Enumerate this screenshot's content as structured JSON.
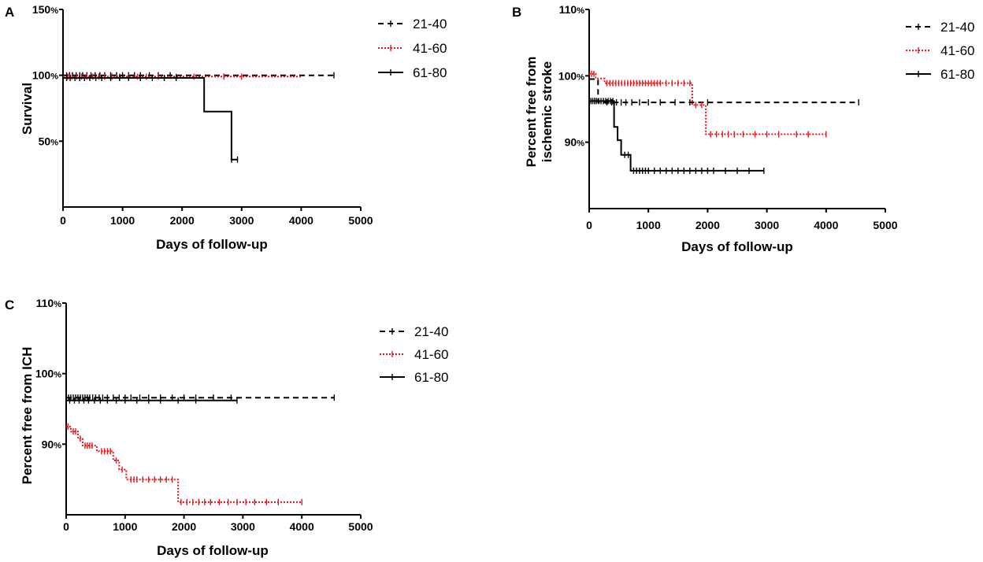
{
  "chart_data": [
    {
      "type": "line",
      "panel": "A",
      "title": "",
      "xlabel": "Days of follow-up",
      "ylabel": "Survival",
      "xlim": [
        0,
        5000
      ],
      "ylim": [
        0,
        150
      ],
      "x_ticks": [
        "0",
        "1000",
        "2000",
        "3000",
        "4000",
        "5000"
      ],
      "y_ticks": [
        {
          "value": 50,
          "num": "50",
          "unit": "%"
        },
        {
          "value": 100,
          "num": "100",
          "unit": "%"
        },
        {
          "value": 150,
          "num": "150",
          "unit": "%"
        }
      ],
      "legend_position": "right",
      "series": [
        {
          "name": "21-40",
          "style": "dashed",
          "color": "#000000",
          "steps": [
            [
              0,
              100
            ],
            [
              4550,
              100
            ]
          ],
          "censor": [
            60,
            110,
            160,
            220,
            280,
            330,
            400,
            470,
            540,
            620,
            700,
            800,
            900,
            1000,
            1100,
            1200,
            1300,
            1450,
            1600,
            1800,
            4550
          ]
        },
        {
          "name": "41-60",
          "style": "dotted",
          "color": "#e8141c",
          "steps": [
            [
              0,
              99
            ],
            [
              4000,
              99
            ]
          ],
          "censor": [
            80,
            150,
            230,
            310,
            400,
            500,
            600,
            700,
            820,
            950,
            1100,
            1250,
            1400,
            1600,
            1900,
            2200,
            2700,
            3000
          ]
        },
        {
          "name": "61-80",
          "style": "solid",
          "color": "#000000",
          "steps": [
            [
              0,
              98
            ],
            [
              2370,
              98
            ],
            [
              2370,
              72.5
            ],
            [
              2830,
              72.5
            ],
            [
              2830,
              36
            ],
            [
              2930,
              36
            ]
          ],
          "censor": [
            60,
            120,
            200,
            280,
            360,
            450,
            550,
            650,
            800,
            950,
            1100,
            1300,
            1500,
            1700,
            1900,
            2830,
            2930
          ]
        }
      ]
    },
    {
      "type": "line",
      "panel": "B",
      "title": "",
      "xlabel": "Days of follow-up",
      "ylabel": "Percent free from ischemic stroke",
      "ylabel_lines": [
        "Percent free from",
        "ischemic stroke"
      ],
      "xlim": [
        0,
        5000
      ],
      "ylim": [
        80,
        110
      ],
      "x_ticks": [
        "0",
        "1000",
        "2000",
        "3000",
        "4000",
        "5000"
      ],
      "y_ticks": [
        {
          "value": 90,
          "num": "90",
          "unit": "%"
        },
        {
          "value": 100,
          "num": "100",
          "unit": "%"
        },
        {
          "value": 110,
          "num": "110",
          "unit": "%"
        }
      ],
      "legend_position": "right",
      "series": [
        {
          "name": "21-40",
          "style": "dashed",
          "color": "#000000",
          "steps": [
            [
              0,
              99.5
            ],
            [
              150,
              99.5
            ],
            [
              150,
              96.0
            ],
            [
              4550,
              96.0
            ]
          ],
          "censor": [
            300,
            380,
            460,
            540,
            620,
            720,
            850,
            1000,
            1200,
            1450,
            1700,
            2000,
            4550
          ]
        },
        {
          "name": "41-60",
          "style": "dotted",
          "color": "#e8141c",
          "steps": [
            [
              0,
              100.3
            ],
            [
              110,
              100.3
            ],
            [
              110,
              99.6
            ],
            [
              260,
              99.6
            ],
            [
              260,
              98.9
            ],
            [
              1740,
              98.9
            ],
            [
              1740,
              95.6
            ],
            [
              1970,
              95.6
            ],
            [
              1970,
              91.2
            ],
            [
              4000,
              91.2
            ]
          ],
          "censor": [
            40,
            80,
            300,
            350,
            400,
            450,
            500,
            550,
            600,
            650,
            700,
            750,
            800,
            850,
            900,
            950,
            1000,
            1050,
            1100,
            1150,
            1200,
            1300,
            1400,
            1500,
            1600,
            1700,
            1800,
            1900,
            2050,
            2150,
            2250,
            2350,
            2450,
            2600,
            2800,
            3000,
            3200,
            3500,
            3700,
            4000
          ]
        },
        {
          "name": "61-80",
          "style": "solid",
          "color": "#000000",
          "steps": [
            [
              0,
              96.2
            ],
            [
              420,
              96.2
            ],
            [
              420,
              92.3
            ],
            [
              480,
              92.3
            ],
            [
              480,
              90.3
            ],
            [
              540,
              90.3
            ],
            [
              540,
              88.1
            ],
            [
              700,
              88.1
            ],
            [
              700,
              85.7
            ],
            [
              2950,
              85.7
            ]
          ],
          "censor": [
            30,
            60,
            90,
            120,
            160,
            200,
            240,
            280,
            320,
            360,
            400,
            600,
            660,
            750,
            800,
            850,
            900,
            950,
            1000,
            1100,
            1200,
            1300,
            1400,
            1500,
            1600,
            1700,
            1800,
            1900,
            2000,
            2100,
            2300,
            2500,
            2700,
            2950
          ]
        }
      ]
    },
    {
      "type": "line",
      "panel": "C",
      "title": "",
      "xlabel": "Days of follow-up",
      "ylabel": "Percent free from ICH",
      "xlim": [
        0,
        5000
      ],
      "ylim": [
        80,
        110
      ],
      "x_ticks": [
        "0",
        "1000",
        "2000",
        "3000",
        "4000",
        "5000"
      ],
      "y_ticks": [
        {
          "value": 90,
          "num": "90",
          "unit": "%"
        },
        {
          "value": 100,
          "num": "100",
          "unit": "%"
        },
        {
          "value": 110,
          "num": "110",
          "unit": "%"
        }
      ],
      "legend_position": "right",
      "series": [
        {
          "name": "21-40",
          "style": "dashed",
          "color": "#000000",
          "steps": [
            [
              0,
              96.6
            ],
            [
              4550,
              96.6
            ]
          ],
          "censor": [
            40,
            80,
            120,
            160,
            200,
            240,
            280,
            320,
            360,
            400,
            450,
            500,
            560,
            620,
            700,
            800,
            900,
            1000,
            1100,
            1250,
            1400,
            1600,
            1800,
            2000,
            2200,
            2500,
            2800,
            4550
          ]
        },
        {
          "name": "41-60",
          "style": "dotted",
          "color": "#e8141c",
          "steps": [
            [
              0,
              92.5
            ],
            [
              80,
              92.5
            ],
            [
              80,
              91.8
            ],
            [
              200,
              91.8
            ],
            [
              200,
              90.8
            ],
            [
              280,
              90.8
            ],
            [
              280,
              89.8
            ],
            [
              520,
              89.8
            ],
            [
              520,
              89.0
            ],
            [
              800,
              89.0
            ],
            [
              800,
              87.7
            ],
            [
              900,
              87.7
            ],
            [
              900,
              86.4
            ],
            [
              1020,
              86.4
            ],
            [
              1020,
              85.0
            ],
            [
              1900,
              85.0
            ],
            [
              1900,
              81.8
            ],
            [
              4000,
              81.8
            ]
          ],
          "censor": [
            30,
            120,
            160,
            240,
            320,
            360,
            400,
            440,
            600,
            650,
            700,
            750,
            850,
            950,
            1100,
            1150,
            1200,
            1300,
            1400,
            1500,
            1600,
            1700,
            1800,
            1950,
            2050,
            2150,
            2250,
            2350,
            2450,
            2600,
            2750,
            2900,
            3050,
            3200,
            3400,
            3600,
            4000
          ]
        },
        {
          "name": "61-80",
          "style": "solid",
          "color": "#000000",
          "steps": [
            [
              0,
              96.2
            ],
            [
              2900,
              96.2
            ]
          ],
          "censor": [
            60,
            140,
            220,
            300,
            380,
            480,
            580,
            700,
            850,
            1000,
            1200,
            1400,
            1600,
            1900,
            2200,
            2900
          ]
        }
      ]
    }
  ]
}
